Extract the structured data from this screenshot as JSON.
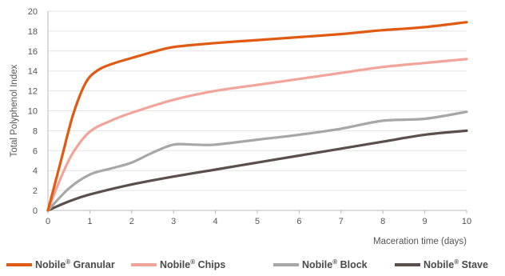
{
  "chart_data": {
    "type": "line",
    "title": "",
    "xlabel": "Maceration time (days)",
    "ylabel": "Total Polyphenol Index",
    "xlim": [
      0,
      10
    ],
    "ylim": [
      0,
      20
    ],
    "x_ticks": [
      0,
      1,
      2,
      3,
      4,
      5,
      6,
      7,
      8,
      9,
      10
    ],
    "y_ticks": [
      0,
      2,
      4,
      6,
      8,
      10,
      12,
      14,
      16,
      18,
      20
    ],
    "grid": "horizontal",
    "legend_position": "bottom",
    "series": [
      {
        "name": "Nobile® Granular",
        "legend_name": "Nobile",
        "legend_sup": "®",
        "legend_suffix": " Granular",
        "color": "#e05a12",
        "x": [
          0,
          0.3,
          0.6,
          0.9,
          1.2,
          1.6,
          2,
          2.5,
          3,
          4,
          5,
          6,
          7,
          7.5,
          8,
          9,
          10
        ],
        "values": [
          0,
          4.8,
          9.6,
          12.8,
          14.1,
          14.8,
          15.3,
          15.9,
          16.4,
          16.8,
          17.1,
          17.4,
          17.7,
          17.9,
          18.1,
          18.4,
          18.9
        ]
      },
      {
        "name": "Nobile® Chips",
        "legend_name": "Nobile",
        "legend_sup": "®",
        "legend_suffix": " Chips",
        "color": "#f2a49a",
        "x": [
          0,
          0.3,
          0.6,
          1,
          1.5,
          2,
          3,
          4,
          5,
          6,
          7,
          8,
          9,
          10
        ],
        "values": [
          0,
          3.2,
          5.8,
          7.9,
          9.0,
          9.8,
          11.1,
          12.0,
          12.6,
          13.2,
          13.8,
          14.4,
          14.8,
          15.2
        ]
      },
      {
        "name": "Nobile® Block",
        "legend_name": "Nobile",
        "legend_sup": "®",
        "legend_suffix": " Block",
        "color": "#a7a7a7",
        "x": [
          0,
          0.5,
          1,
          1.5,
          2,
          2.5,
          3,
          3.5,
          4,
          5,
          6,
          7,
          8,
          9,
          10
        ],
        "values": [
          0,
          2.2,
          3.6,
          4.2,
          4.8,
          5.8,
          6.6,
          6.6,
          6.6,
          7.1,
          7.6,
          8.2,
          9.0,
          9.2,
          9.9
        ]
      },
      {
        "name": "Nobile® Stave",
        "legend_name": "Nobile",
        "legend_sup": "®",
        "legend_suffix": " Stave",
        "color": "#5a4f4b",
        "x": [
          0,
          0.5,
          1,
          2,
          3,
          4,
          5,
          6,
          7,
          8,
          9,
          10
        ],
        "values": [
          0,
          0.9,
          1.6,
          2.6,
          3.4,
          4.1,
          4.8,
          5.5,
          6.2,
          6.9,
          7.6,
          8.0
        ]
      }
    ]
  }
}
